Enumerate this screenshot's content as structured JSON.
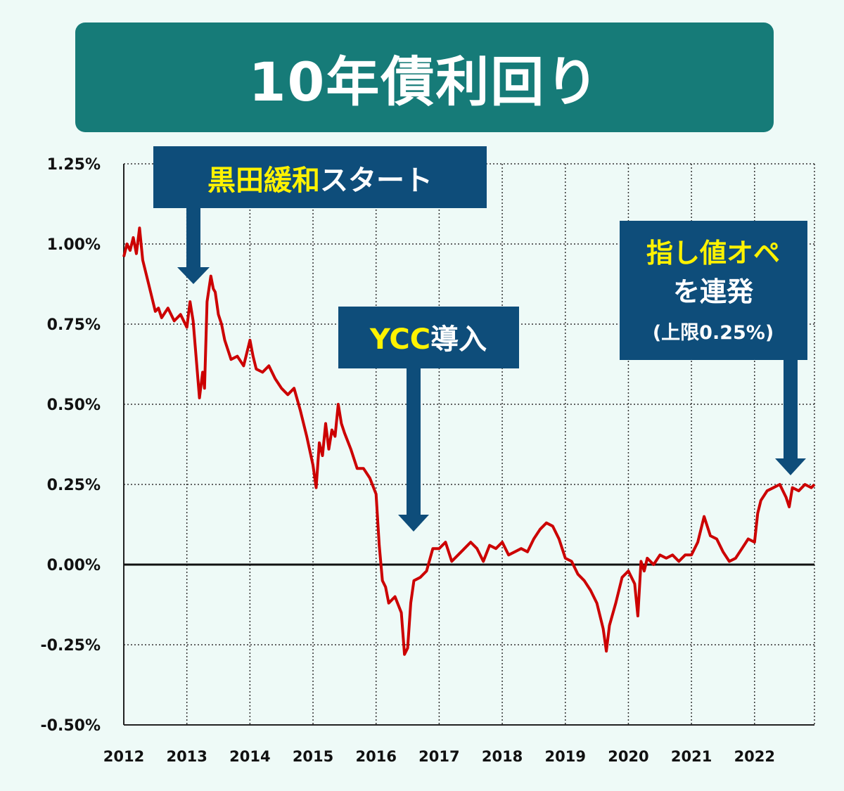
{
  "title": "10年債利回り",
  "colors": {
    "banner": "#167b78",
    "callout": "#0e4d7a",
    "highlight": "#fff200",
    "line": "#cc0000",
    "background": "#eefaf7"
  },
  "chart_data": {
    "type": "line",
    "title": "10年債利回り",
    "xlabel": "",
    "ylabel": "",
    "xlim": [
      2012.0,
      2022.95
    ],
    "ylim": [
      -0.5,
      1.25
    ],
    "grid": true,
    "y_ticks": [
      -0.5,
      -0.25,
      0.0,
      0.25,
      0.5,
      0.75,
      1.0,
      1.25
    ],
    "y_tick_labels": [
      "-0.50%",
      "-0.25%",
      "0.00%",
      "0.25%",
      "0.50%",
      "0.75%",
      "1.00%",
      "1.25%"
    ],
    "x_ticks": [
      2012,
      2013,
      2014,
      2015,
      2016,
      2017,
      2018,
      2019,
      2020,
      2021,
      2022
    ],
    "x_tick_labels": [
      "2012",
      "2013",
      "2014",
      "2015",
      "2016",
      "2017",
      "2018",
      "2019",
      "2020",
      "2021",
      "2022"
    ],
    "series": [
      {
        "color": "#cc0000",
        "x": [
          2012.0,
          2012.05,
          2012.1,
          2012.15,
          2012.2,
          2012.25,
          2012.3,
          2012.4,
          2012.5,
          2012.55,
          2012.6,
          2012.7,
          2012.8,
          2012.9,
          2013.0,
          2013.05,
          2013.1,
          2013.15,
          2013.2,
          2013.25,
          2013.28,
          2013.32,
          2013.38,
          2013.42,
          2013.45,
          2013.5,
          2013.55,
          2013.6,
          2013.7,
          2013.8,
          2013.9,
          2014.0,
          2014.05,
          2014.1,
          2014.2,
          2014.3,
          2014.4,
          2014.5,
          2014.6,
          2014.7,
          2014.8,
          2014.9,
          2015.0,
          2015.05,
          2015.1,
          2015.15,
          2015.2,
          2015.25,
          2015.3,
          2015.35,
          2015.4,
          2015.45,
          2015.5,
          2015.6,
          2015.7,
          2015.8,
          2015.9,
          2016.0,
          2016.05,
          2016.1,
          2016.15,
          2016.2,
          2016.3,
          2016.4,
          2016.45,
          2016.5,
          2016.55,
          2016.6,
          2016.7,
          2016.8,
          2016.9,
          2017.0,
          2017.1,
          2017.2,
          2017.3,
          2017.4,
          2017.5,
          2017.6,
          2017.7,
          2017.8,
          2017.9,
          2018.0,
          2018.1,
          2018.2,
          2018.3,
          2018.4,
          2018.5,
          2018.6,
          2018.7,
          2018.8,
          2018.9,
          2019.0,
          2019.1,
          2019.2,
          2019.3,
          2019.4,
          2019.5,
          2019.6,
          2019.65,
          2019.7,
          2019.8,
          2019.9,
          2020.0,
          2020.1,
          2020.15,
          2020.2,
          2020.25,
          2020.3,
          2020.4,
          2020.5,
          2020.6,
          2020.7,
          2020.8,
          2020.9,
          2021.0,
          2021.1,
          2021.2,
          2021.3,
          2021.4,
          2021.5,
          2021.6,
          2021.7,
          2021.8,
          2021.9,
          2022.0,
          2022.05,
          2022.1,
          2022.2,
          2022.3,
          2022.4,
          2022.5,
          2022.55,
          2022.6,
          2022.7,
          2022.8,
          2022.9,
          2022.95
        ],
        "y": [
          0.96,
          1.0,
          0.98,
          1.02,
          0.97,
          1.05,
          0.95,
          0.87,
          0.79,
          0.8,
          0.77,
          0.8,
          0.76,
          0.78,
          0.74,
          0.82,
          0.76,
          0.64,
          0.52,
          0.6,
          0.55,
          0.82,
          0.9,
          0.86,
          0.85,
          0.78,
          0.75,
          0.7,
          0.64,
          0.65,
          0.62,
          0.7,
          0.65,
          0.61,
          0.6,
          0.62,
          0.58,
          0.55,
          0.53,
          0.55,
          0.48,
          0.4,
          0.31,
          0.24,
          0.38,
          0.34,
          0.44,
          0.36,
          0.42,
          0.4,
          0.5,
          0.44,
          0.41,
          0.36,
          0.3,
          0.3,
          0.27,
          0.22,
          0.06,
          -0.05,
          -0.07,
          -0.12,
          -0.1,
          -0.15,
          -0.28,
          -0.26,
          -0.12,
          -0.05,
          -0.04,
          -0.02,
          0.05,
          0.05,
          0.07,
          0.01,
          0.03,
          0.05,
          0.07,
          0.05,
          0.01,
          0.06,
          0.05,
          0.07,
          0.03,
          0.04,
          0.05,
          0.04,
          0.08,
          0.11,
          0.13,
          0.12,
          0.08,
          0.02,
          0.01,
          -0.03,
          -0.05,
          -0.08,
          -0.12,
          -0.2,
          -0.27,
          -0.19,
          -0.12,
          -0.04,
          -0.02,
          -0.06,
          -0.16,
          0.01,
          -0.02,
          0.02,
          0.0,
          0.03,
          0.02,
          0.03,
          0.01,
          0.03,
          0.03,
          0.07,
          0.15,
          0.09,
          0.08,
          0.04,
          0.01,
          0.02,
          0.05,
          0.08,
          0.07,
          0.16,
          0.2,
          0.23,
          0.24,
          0.25,
          0.21,
          0.18,
          0.24,
          0.23,
          0.25,
          0.24,
          0.25
        ]
      }
    ],
    "annotations": [
      {
        "highlight": "黒田緩和",
        "text": "スタート"
      },
      {
        "highlight": "YCC",
        "text": "導入"
      },
      {
        "highlight": "指し値オペ",
        "line2": "を連発",
        "line3": "(上限0.25%)"
      }
    ]
  }
}
